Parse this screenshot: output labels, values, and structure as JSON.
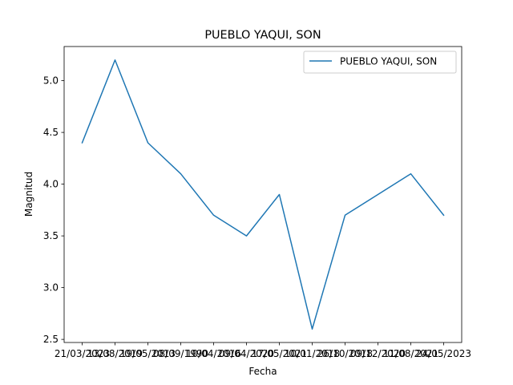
{
  "chart_data": {
    "type": "line",
    "title": "PUEBLO YAQUI, SON",
    "xlabel": "Fecha",
    "ylabel": "Magnitud",
    "categories": [
      "21/03/2023",
      "13/08/2019",
      "19/05/2013",
      "08/09/1990",
      "10/04/2016",
      "09/04/2020",
      "17/05/2021",
      "10/01/2018",
      "26/10/2018",
      "09/12/2020",
      "11/08/2021",
      "24/05/2023"
    ],
    "series": [
      {
        "name": "PUEBLO YAQUI, SON",
        "values": [
          4.4,
          5.2,
          4.4,
          4.1,
          3.7,
          3.5,
          3.9,
          2.6,
          3.7,
          3.9,
          4.1,
          3.7
        ],
        "color": "#1f77b4"
      }
    ],
    "ylim": [
      2.47,
      5.33
    ],
    "yticks": [
      2.5,
      3.0,
      3.5,
      4.0,
      4.5,
      5.0
    ],
    "ytick_labels": [
      "2.5",
      "3.0",
      "3.5",
      "4.0",
      "4.5",
      "5.0"
    ],
    "grid": false,
    "legend": "top-right"
  }
}
